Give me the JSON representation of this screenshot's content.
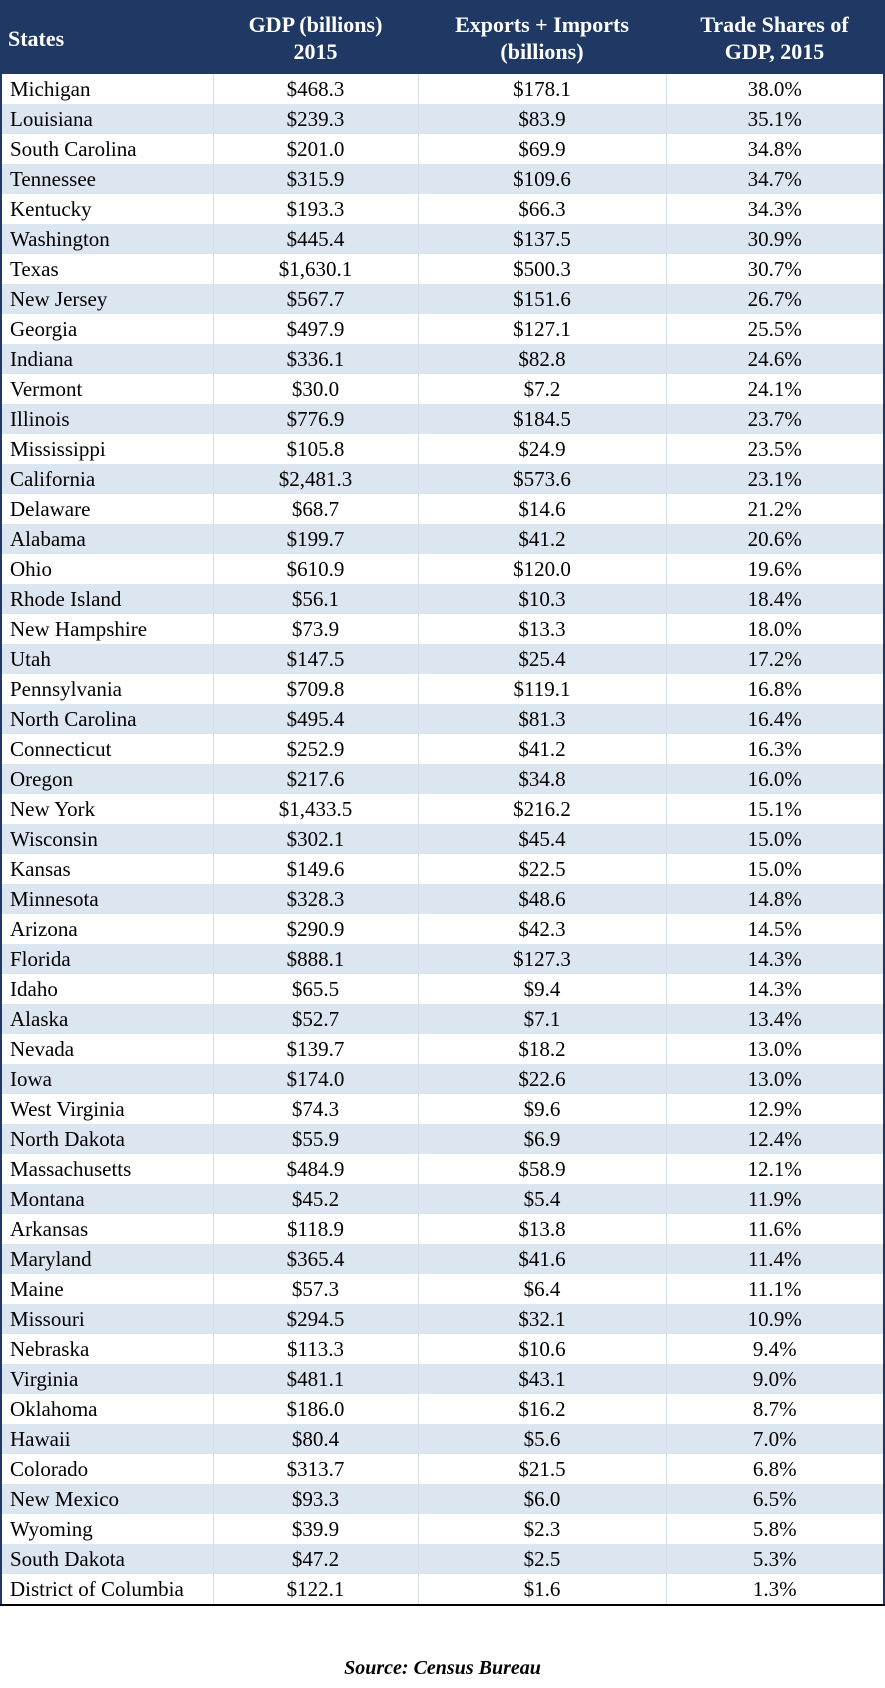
{
  "table": {
    "headers": [
      {
        "line1": "States",
        "line2": ""
      },
      {
        "line1": "GDP (billions)",
        "line2": "2015"
      },
      {
        "line1": "Exports + Imports",
        "line2": "(billions)"
      },
      {
        "line1": "Trade Shares of",
        "line2": "GDP, 2015"
      }
    ],
    "rows": [
      [
        "Michigan",
        "$468.3",
        "$178.1",
        "38.0%"
      ],
      [
        "Louisiana",
        "$239.3",
        "$83.9",
        "35.1%"
      ],
      [
        "South Carolina",
        "$201.0",
        "$69.9",
        "34.8%"
      ],
      [
        "Tennessee",
        "$315.9",
        "$109.6",
        "34.7%"
      ],
      [
        "Kentucky",
        "$193.3",
        "$66.3",
        "34.3%"
      ],
      [
        "Washington",
        "$445.4",
        "$137.5",
        "30.9%"
      ],
      [
        "Texas",
        "$1,630.1",
        "$500.3",
        "30.7%"
      ],
      [
        "New Jersey",
        "$567.7",
        "$151.6",
        "26.7%"
      ],
      [
        "Georgia",
        "$497.9",
        "$127.1",
        "25.5%"
      ],
      [
        "Indiana",
        "$336.1",
        "$82.8",
        "24.6%"
      ],
      [
        "Vermont",
        "$30.0",
        "$7.2",
        "24.1%"
      ],
      [
        "Illinois",
        "$776.9",
        "$184.5",
        "23.7%"
      ],
      [
        "Mississippi",
        "$105.8",
        "$24.9",
        "23.5%"
      ],
      [
        "California",
        "$2,481.3",
        "$573.6",
        "23.1%"
      ],
      [
        "Delaware",
        "$68.7",
        "$14.6",
        "21.2%"
      ],
      [
        "Alabama",
        "$199.7",
        "$41.2",
        "20.6%"
      ],
      [
        "Ohio",
        "$610.9",
        "$120.0",
        "19.6%"
      ],
      [
        "Rhode Island",
        "$56.1",
        "$10.3",
        "18.4%"
      ],
      [
        "New Hampshire",
        "$73.9",
        "$13.3",
        "18.0%"
      ],
      [
        "Utah",
        "$147.5",
        "$25.4",
        "17.2%"
      ],
      [
        "Pennsylvania",
        "$709.8",
        "$119.1",
        "16.8%"
      ],
      [
        "North Carolina",
        "$495.4",
        "$81.3",
        "16.4%"
      ],
      [
        "Connecticut",
        "$252.9",
        "$41.2",
        "16.3%"
      ],
      [
        "Oregon",
        "$217.6",
        "$34.8",
        "16.0%"
      ],
      [
        "New York",
        "$1,433.5",
        "$216.2",
        "15.1%"
      ],
      [
        "Wisconsin",
        "$302.1",
        "$45.4",
        "15.0%"
      ],
      [
        "Kansas",
        "$149.6",
        "$22.5",
        "15.0%"
      ],
      [
        "Minnesota",
        "$328.3",
        "$48.6",
        "14.8%"
      ],
      [
        "Arizona",
        "$290.9",
        "$42.3",
        "14.5%"
      ],
      [
        "Florida",
        "$888.1",
        "$127.3",
        "14.3%"
      ],
      [
        "Idaho",
        "$65.5",
        "$9.4",
        "14.3%"
      ],
      [
        "Alaska",
        "$52.7",
        "$7.1",
        "13.4%"
      ],
      [
        "Nevada",
        "$139.7",
        "$18.2",
        "13.0%"
      ],
      [
        "Iowa",
        "$174.0",
        "$22.6",
        "13.0%"
      ],
      [
        "West Virginia",
        "$74.3",
        "$9.6",
        "12.9%"
      ],
      [
        "North Dakota",
        "$55.9",
        "$6.9",
        "12.4%"
      ],
      [
        "Massachusetts",
        "$484.9",
        "$58.9",
        "12.1%"
      ],
      [
        "Montana",
        "$45.2",
        "$5.4",
        "11.9%"
      ],
      [
        "Arkansas",
        "$118.9",
        "$13.8",
        "11.6%"
      ],
      [
        "Maryland",
        "$365.4",
        "$41.6",
        "11.4%"
      ],
      [
        "Maine",
        "$57.3",
        "$6.4",
        "11.1%"
      ],
      [
        "Missouri",
        "$294.5",
        "$32.1",
        "10.9%"
      ],
      [
        "Nebraska",
        "$113.3",
        "$10.6",
        "9.4%"
      ],
      [
        "Virginia",
        "$481.1",
        "$43.1",
        "9.0%"
      ],
      [
        "Oklahoma",
        "$186.0",
        "$16.2",
        "8.7%"
      ],
      [
        "Hawaii",
        "$80.4",
        "$5.6",
        "7.0%"
      ],
      [
        "Colorado",
        "$313.7",
        "$21.5",
        "6.8%"
      ],
      [
        "New Mexico",
        "$93.3",
        "$6.0",
        "6.5%"
      ],
      [
        "Wyoming",
        "$39.9",
        "$2.3",
        "5.8%"
      ],
      [
        "South Dakota",
        "$47.2",
        "$2.5",
        "5.3%"
      ],
      [
        "District of Columbia",
        "$122.1",
        "$1.6",
        "1.3%"
      ]
    ]
  },
  "source": "Source: Census Bureau",
  "colors": {
    "header_bg": "#1f3864",
    "header_text": "#ffffff",
    "band": "#dce6f1"
  }
}
